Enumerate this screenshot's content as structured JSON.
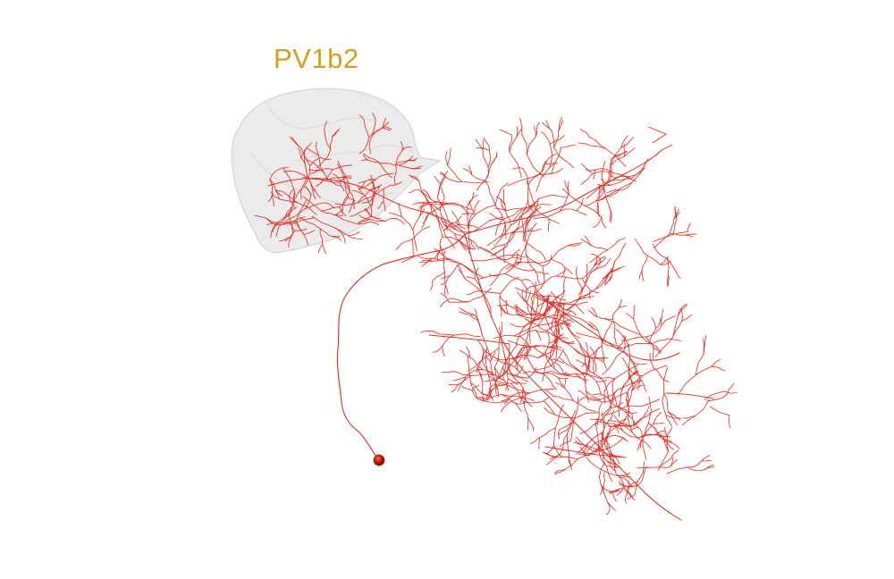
{
  "region": {
    "label": "PV1b2"
  },
  "colors": {
    "label": "#d4a017",
    "neuron": "#e8251a",
    "soma": "#b0150b",
    "neuropil_fill": "#e6e6e6",
    "neuropil_edge": "#cfcfcf"
  }
}
